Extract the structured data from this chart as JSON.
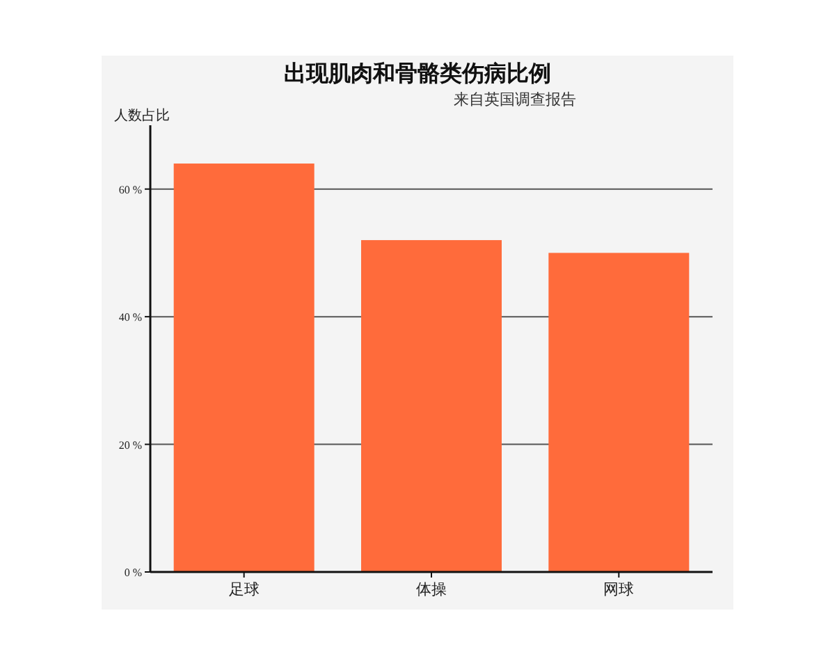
{
  "chart_data": {
    "type": "bar",
    "title": "出现肌肉和骨骼类伤病比例",
    "subtitle": "来自英国调查报告",
    "ylabel": "人数占比",
    "categories": [
      "足球",
      "体操",
      "网球"
    ],
    "values": [
      64,
      52,
      50
    ],
    "color": "#ff6b3b",
    "ylim": [
      0,
      70
    ],
    "yticks": [
      {
        "value": 0,
        "label": "0 %"
      },
      {
        "value": 20,
        "label": "20 %"
      },
      {
        "value": 40,
        "label": "40 %"
      },
      {
        "value": 60,
        "label": "60 %"
      }
    ],
    "grid": "y"
  }
}
